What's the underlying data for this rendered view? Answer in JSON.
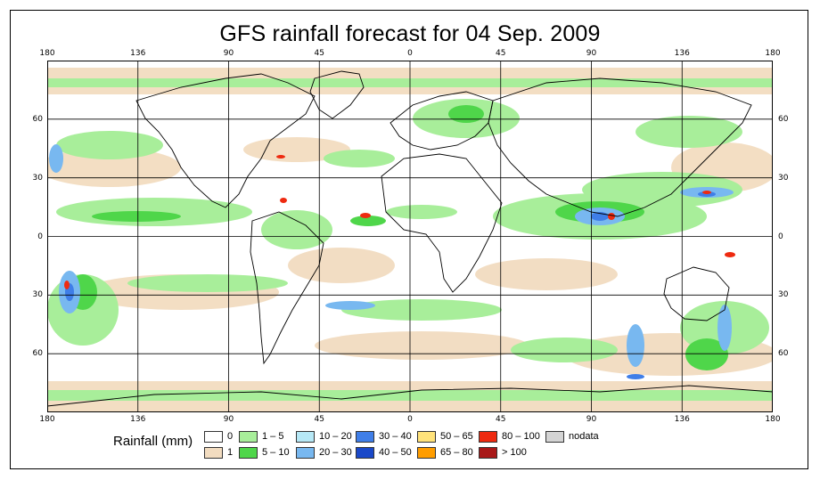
{
  "title": "GFS rainfall forecast for 04 Sep. 2009",
  "axes": {
    "lon_labels": [
      "180",
      "136",
      "90",
      "45",
      "0",
      "45",
      "90",
      "136",
      "180"
    ],
    "lat_labels": [
      "60",
      "30",
      "0",
      "30",
      "60"
    ]
  },
  "legend": {
    "label": "Rainfall (mm)",
    "items": [
      {
        "text": "0",
        "color": "#ffffff"
      },
      {
        "text": "1",
        "color": "#f2dcc0"
      },
      {
        "text": "1 – 5",
        "color": "#a8ee9a"
      },
      {
        "text": "5 – 10",
        "color": "#4fd64a"
      },
      {
        "text": "10 – 20",
        "color": "#b6e8f6"
      },
      {
        "text": "20 – 30",
        "color": "#78b8f0"
      },
      {
        "text": "30 – 40",
        "color": "#3f7ee8"
      },
      {
        "text": "40 – 50",
        "color": "#1a48c8"
      },
      {
        "text": "50 – 65",
        "color": "#ffe27a"
      },
      {
        "text": "65 – 80",
        "color": "#ff9d00"
      },
      {
        "text": "80 – 100",
        "color": "#ee2a10"
      },
      {
        "text": "> 100",
        "color": "#a81818"
      },
      {
        "text": "nodata",
        "color": "#d4d4d4"
      }
    ]
  }
}
